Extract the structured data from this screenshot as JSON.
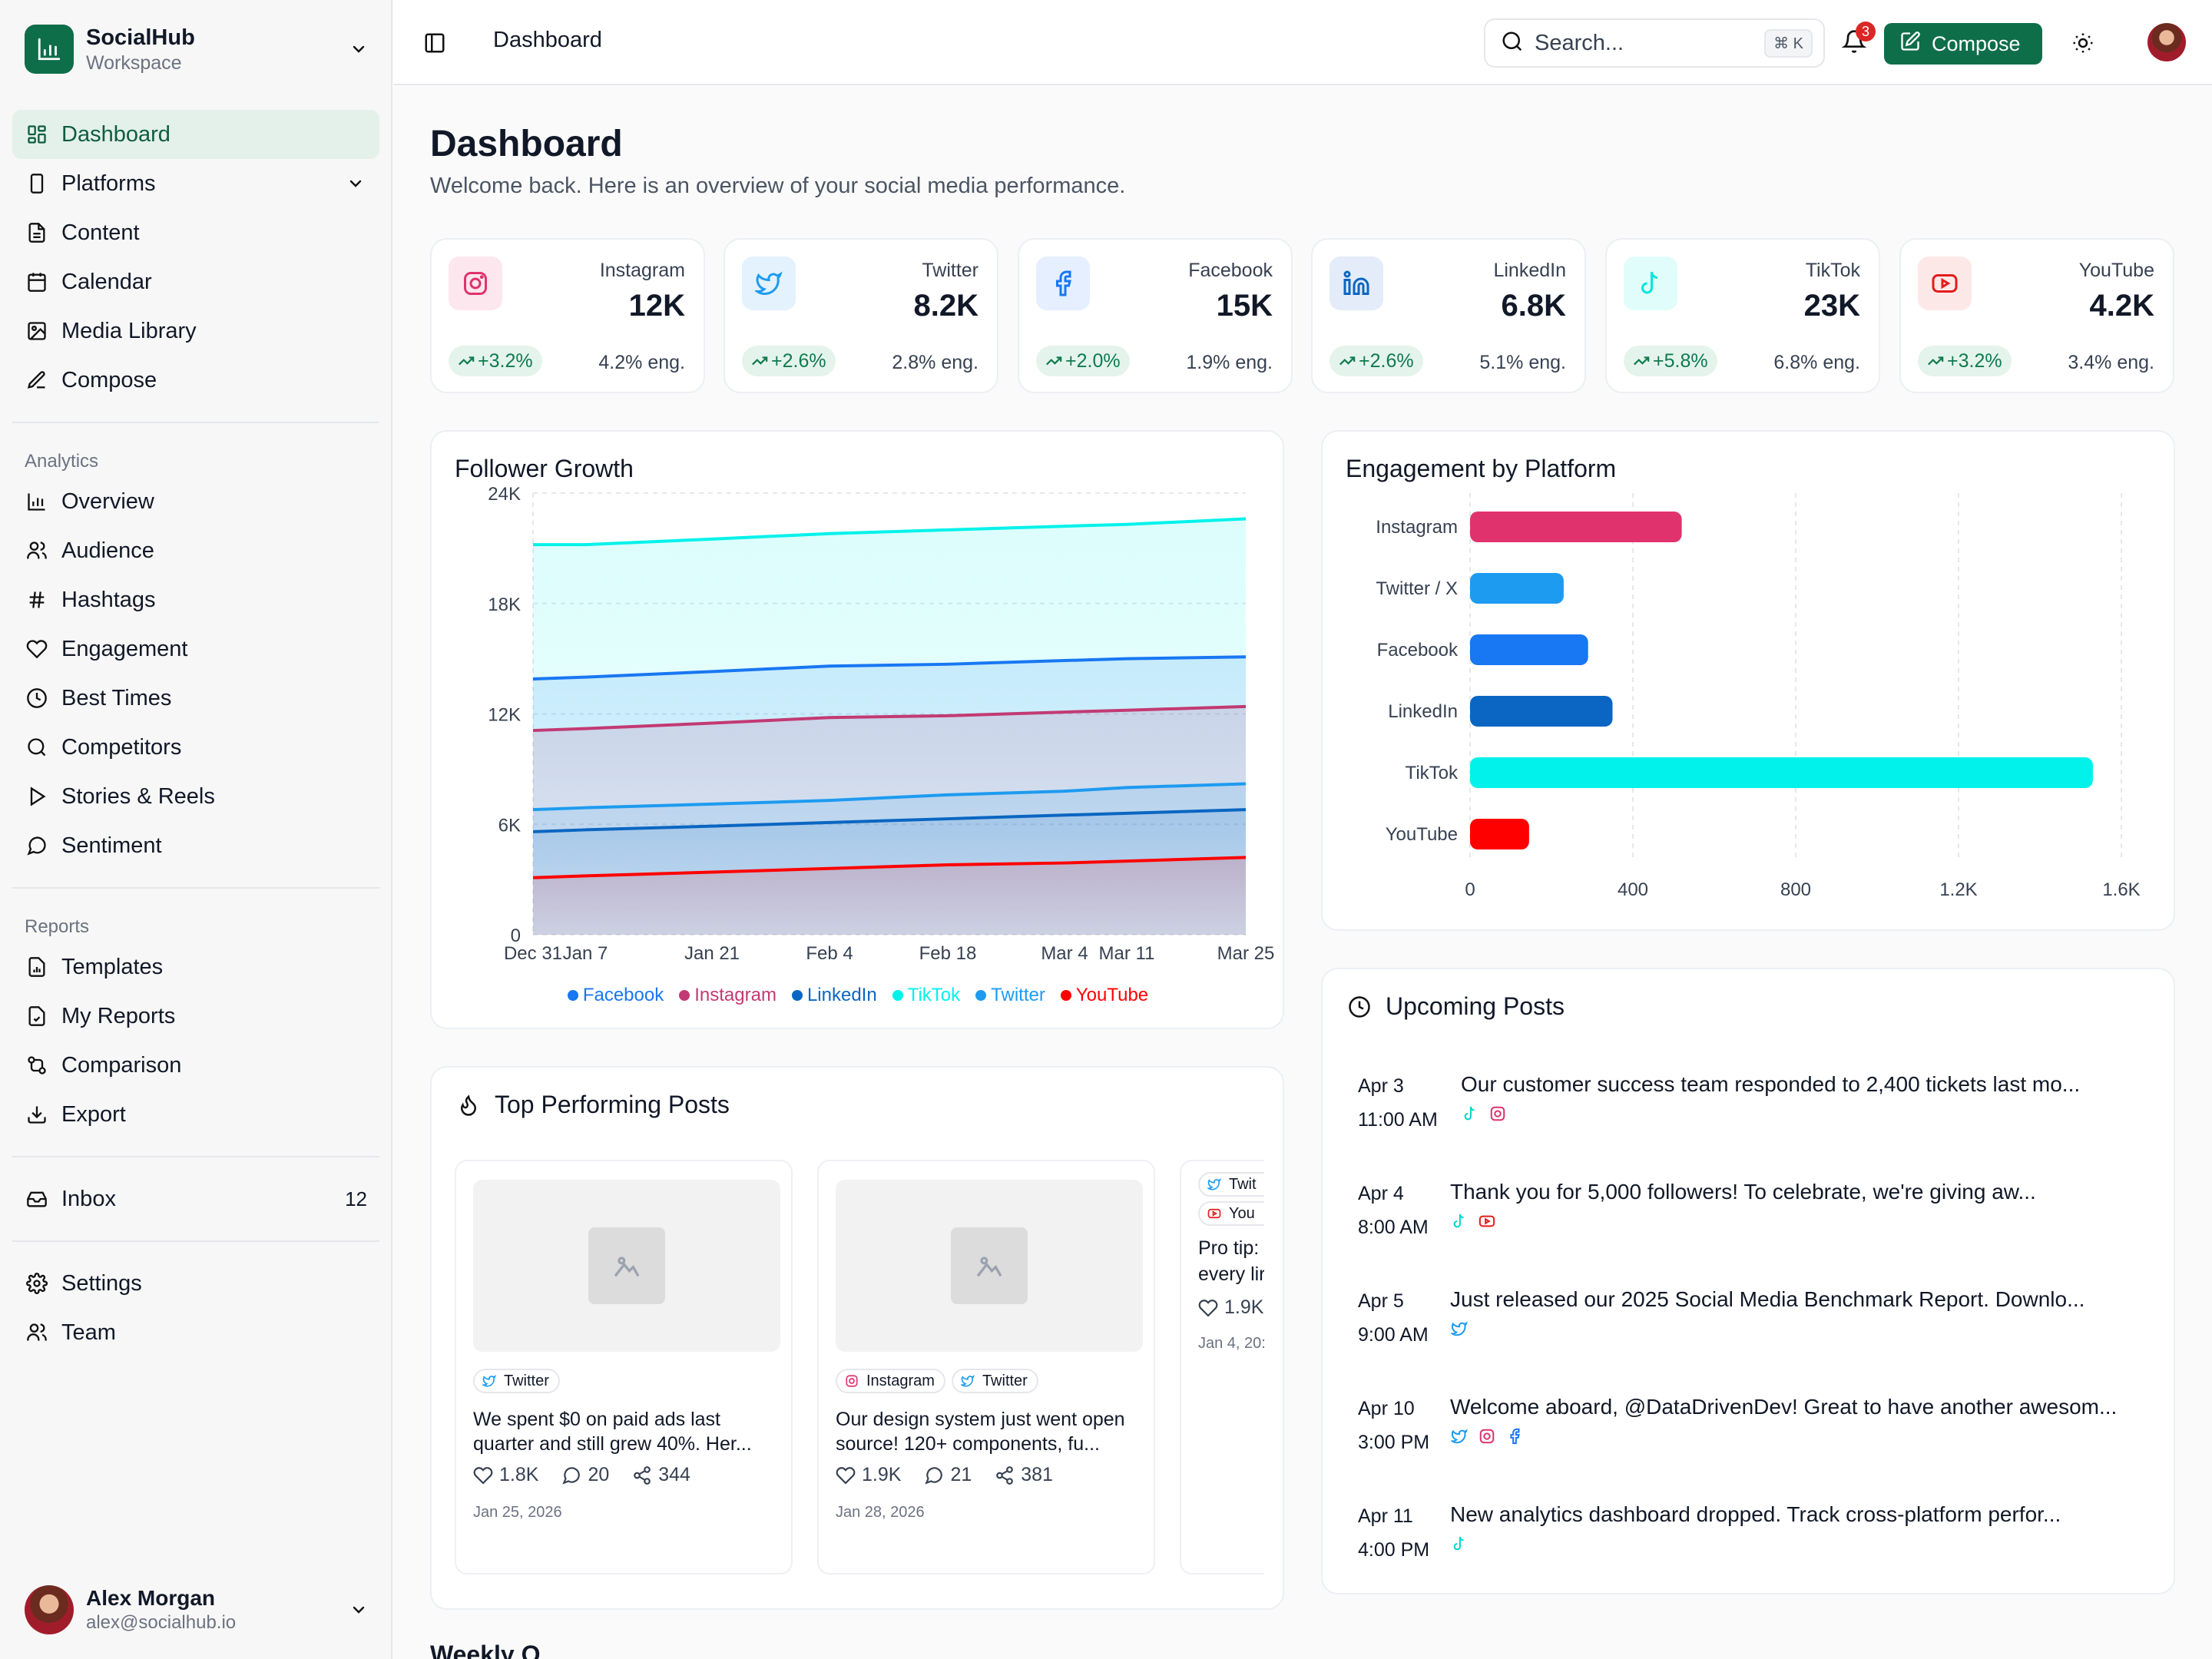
{
  "workspace": {
    "name": "SocialHub",
    "sub": "Workspace"
  },
  "nav": {
    "main": [
      {
        "label": "Dashboard",
        "icon": "dashboard-icon"
      },
      {
        "label": "Platforms",
        "icon": "phone-icon"
      },
      {
        "label": "Content",
        "icon": "document-icon"
      },
      {
        "label": "Calendar",
        "icon": "calendar-icon"
      },
      {
        "label": "Media Library",
        "icon": "image-icon"
      },
      {
        "label": "Compose",
        "icon": "edit-icon"
      }
    ],
    "analytics_title": "Analytics",
    "analytics": [
      {
        "label": "Overview",
        "icon": "bar-chart-icon"
      },
      {
        "label": "Audience",
        "icon": "users-icon"
      },
      {
        "label": "Hashtags",
        "icon": "hashtag-icon"
      },
      {
        "label": "Engagement",
        "icon": "heart-icon"
      },
      {
        "label": "Best Times",
        "icon": "clock-icon"
      },
      {
        "label": "Competitors",
        "icon": "search-icon"
      },
      {
        "label": "Stories & Reels",
        "icon": "play-icon"
      },
      {
        "label": "Sentiment",
        "icon": "chat-icon"
      }
    ],
    "reports_title": "Reports",
    "reports": [
      {
        "label": "Templates",
        "icon": "file-chart-icon"
      },
      {
        "label": "My Reports",
        "icon": "file-check-icon"
      },
      {
        "label": "Comparison",
        "icon": "compare-icon"
      },
      {
        "label": "Export",
        "icon": "download-icon"
      }
    ],
    "inbox": {
      "label": "Inbox",
      "count": "12"
    },
    "settings": "Settings",
    "team": "Team"
  },
  "user": {
    "name": "Alex Morgan",
    "email": "alex@socialhub.io"
  },
  "header": {
    "title": "Dashboard",
    "search_placeholder": "Search...",
    "shortcut": "⌘ K",
    "notifications": "3",
    "compose": "Compose"
  },
  "page": {
    "title": "Dashboard",
    "subtitle": "Welcome back. Here is an overview of your social media performance."
  },
  "colors": {
    "brand": "#0f6e4a",
    "instagram": "#e0336e",
    "twitter": "#1d9bf0",
    "facebook": "#1877f2",
    "linkedin": "#0a66c2",
    "tiktok": "#00f2ea",
    "youtube": "#ff0000"
  },
  "stats": [
    {
      "platform": "Instagram",
      "value": "12K",
      "change": "+3.2%",
      "eng": "4.2% eng."
    },
    {
      "platform": "Twitter",
      "value": "8.2K",
      "change": "+2.6%",
      "eng": "2.8% eng."
    },
    {
      "platform": "Facebook",
      "value": "15K",
      "change": "+2.0%",
      "eng": "1.9% eng."
    },
    {
      "platform": "LinkedIn",
      "value": "6.8K",
      "change": "+2.6%",
      "eng": "5.1% eng."
    },
    {
      "platform": "TikTok",
      "value": "23K",
      "change": "+5.8%",
      "eng": "6.8% eng."
    },
    {
      "platform": "YouTube",
      "value": "4.2K",
      "change": "+3.2%",
      "eng": "3.4% eng."
    }
  ],
  "follower_growth": {
    "title": "Follower Growth"
  },
  "engagement": {
    "title": "Engagement by Platform"
  },
  "chart_data": [
    {
      "type": "area",
      "title": "Follower Growth",
      "x": [
        "Dec 31",
        "Jan 7",
        "Jan 21",
        "Feb 4",
        "Feb 18",
        "Mar 4",
        "Mar 11",
        "Mar 25"
      ],
      "x_ticks": [
        "Dec 31",
        "Jan 7",
        "Jan 21",
        "Feb 4",
        "Feb 18",
        "Mar 4",
        "Mar 11",
        "Mar 25"
      ],
      "y_ticks": [
        "0",
        "6K",
        "12K",
        "18K",
        "24K"
      ],
      "ylim": [
        0,
        24000
      ],
      "grid": true,
      "legend_position": "bottom",
      "series": [
        {
          "name": "TikTok",
          "color": "#00f2ea",
          "values": [
            21200,
            21200,
            21500,
            21800,
            22000,
            22200,
            22300,
            22600
          ]
        },
        {
          "name": "Facebook",
          "color": "#1877f2",
          "values": [
            13900,
            14000,
            14300,
            14600,
            14700,
            14900,
            15000,
            15100
          ]
        },
        {
          "name": "Instagram",
          "color": "#c23a73",
          "values": [
            11100,
            11200,
            11500,
            11800,
            11900,
            12100,
            12200,
            12400
          ]
        },
        {
          "name": "Twitter",
          "color": "#1d9bf0",
          "values": [
            6800,
            6900,
            7100,
            7300,
            7600,
            7800,
            8000,
            8200
          ]
        },
        {
          "name": "LinkedIn",
          "color": "#0a66c2",
          "values": [
            5600,
            5700,
            5900,
            6100,
            6300,
            6500,
            6600,
            6800
          ]
        },
        {
          "name": "YouTube",
          "color": "#ff0000",
          "values": [
            3100,
            3200,
            3400,
            3600,
            3800,
            3900,
            4000,
            4200
          ]
        }
      ]
    },
    {
      "type": "bar",
      "orientation": "horizontal",
      "title": "Engagement by Platform",
      "categories": [
        "Instagram",
        "Twitter / X",
        "Facebook",
        "LinkedIn",
        "TikTok",
        "YouTube"
      ],
      "values": [
        520,
        230,
        290,
        350,
        1530,
        145
      ],
      "colors": [
        "#e0336e",
        "#1d9bf0",
        "#1877f2",
        "#0a66c2",
        "#00f2ea",
        "#ff0000"
      ],
      "x_ticks": [
        "0",
        "400",
        "800",
        "1.2K",
        "1.6K"
      ],
      "xlim": [
        0,
        1600
      ],
      "grid": true
    }
  ],
  "legend_order": [
    "Facebook",
    "Instagram",
    "LinkedIn",
    "TikTok",
    "Twitter",
    "YouTube"
  ],
  "top_posts": {
    "title": "Top Performing Posts",
    "items": [
      {
        "tags": [
          "Twitter"
        ],
        "text1": "We spent $0 on paid ads last",
        "text2": "quarter and still grew 40%. Her...",
        "likes": "1.8K",
        "comments": "20",
        "shares": "344",
        "date": "Jan 25, 2026"
      },
      {
        "tags": [
          "Instagram",
          "Twitter"
        ],
        "text1": "Our design system just went open",
        "text2": "source! 120+ components, fu...",
        "likes": "1.9K",
        "comments": "21",
        "shares": "381",
        "date": "Jan 28, 2026"
      },
      {
        "tags": [
          "Twit",
          "You"
        ],
        "text1": "Pro tip: I",
        "text2": "every lir",
        "likes": "1.9K",
        "date": "Jan 4, 20:"
      }
    ]
  },
  "upcoming": {
    "title": "Upcoming Posts",
    "items": [
      {
        "date": "Apr 3",
        "time": "11:00 AM",
        "text": "Our customer success team responded to 2,400 tickets last mo...",
        "platforms": [
          "tiktok",
          "instagram"
        ]
      },
      {
        "date": "Apr 4",
        "time": "8:00 AM",
        "text": "Thank you for 5,000 followers! To celebrate, we're giving aw...",
        "platforms": [
          "tiktok",
          "youtube"
        ]
      },
      {
        "date": "Apr 5",
        "time": "9:00 AM",
        "text": "Just released our 2025 Social Media Benchmark Report. Downlo...",
        "platforms": [
          "twitter"
        ]
      },
      {
        "date": "Apr 10",
        "time": "3:00 PM",
        "text": "Welcome aboard, @DataDrivenDev! Great to have another awesom...",
        "platforms": [
          "twitter",
          "instagram",
          "facebook"
        ]
      },
      {
        "date": "Apr 11",
        "time": "4:00 PM",
        "text": "New analytics dashboard dropped. Track cross-platform perfor...",
        "platforms": [
          "tiktok"
        ]
      }
    ]
  },
  "weekly": {
    "title": "Weekly O"
  }
}
